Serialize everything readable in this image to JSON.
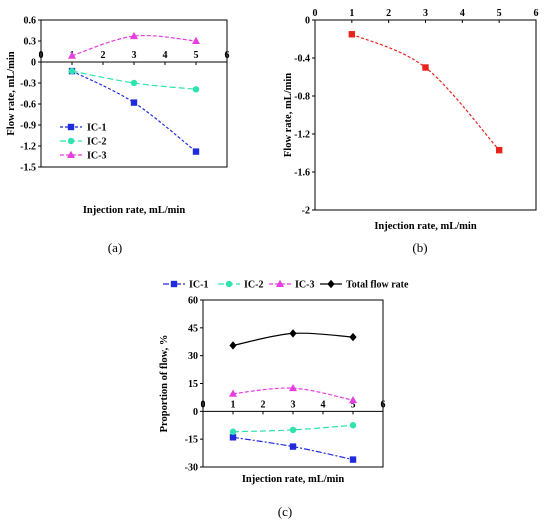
{
  "charts": [
    {
      "id": "a",
      "panel_label": "(a)",
      "type": "line",
      "xlabel": "Injection rate, mL/min",
      "ylabel": "Flow rate, mL/min",
      "xlim": [
        0,
        6
      ],
      "ylim": [
        -1.5,
        0.6
      ],
      "xticks": [
        "0",
        "1",
        "2",
        "3",
        "4",
        "5",
        "6"
      ],
      "yticks": [
        "0.6",
        "0.3",
        "0",
        "-0.3",
        "-0.6",
        "-0.9",
        "-1.2",
        "-1.5"
      ],
      "legend_position": "bottom-left",
      "series": [
        {
          "name": "IC-1",
          "color": "#1f2bdc",
          "marker": "square",
          "x": [
            1,
            3,
            5
          ],
          "y": [
            -0.13,
            -0.58,
            -1.28
          ]
        },
        {
          "name": "IC-2",
          "color": "#2de3b0",
          "marker": "circle",
          "x": [
            1,
            3,
            5
          ],
          "y": [
            -0.13,
            -0.3,
            -0.39
          ]
        },
        {
          "name": "IC-3",
          "color": "#e83ee0",
          "marker": "triangle",
          "x": [
            1,
            3,
            5
          ],
          "y": [
            0.09,
            0.37,
            0.3
          ]
        }
      ]
    },
    {
      "id": "b",
      "panel_label": "(b)",
      "type": "line",
      "xlabel": "Injection rate, mL/min",
      "ylabel": "Flow rate, mL/min",
      "xlim": [
        0,
        6
      ],
      "ylim": [
        -2,
        0
      ],
      "xticks": [
        "0",
        "1",
        "2",
        "3",
        "4",
        "5",
        "6"
      ],
      "yticks": [
        "0",
        "-0.4",
        "-0.8",
        "-1.2",
        "-1.6",
        "-2"
      ],
      "series": [
        {
          "name": "",
          "color": "#e8231c",
          "marker": "square",
          "x": [
            1,
            3,
            5
          ],
          "y": [
            -0.15,
            -0.5,
            -1.37
          ]
        }
      ]
    },
    {
      "id": "c",
      "panel_label": "(c)",
      "type": "line",
      "xlabel": "Injection rate, mL/min",
      "ylabel": "Proportion of flow, %",
      "xlim": [
        0,
        6
      ],
      "ylim": [
        -30,
        60
      ],
      "xticks": [
        "0",
        "1",
        "2",
        "3",
        "4",
        "5",
        "6"
      ],
      "yticks": [
        "60",
        "45",
        "30",
        "15",
        "0",
        "-15",
        "-30"
      ],
      "legend_position": "top",
      "series": [
        {
          "name": "IC-1",
          "color": "#1f2bdc",
          "marker": "square",
          "x": [
            1,
            3,
            5
          ],
          "y": [
            -14,
            -19,
            -26
          ]
        },
        {
          "name": "IC-2",
          "color": "#2de3b0",
          "marker": "circle",
          "x": [
            1,
            3,
            5
          ],
          "y": [
            -11,
            -10,
            -7.5
          ]
        },
        {
          "name": "IC-3",
          "color": "#e83ee0",
          "marker": "triangle",
          "x": [
            1,
            3,
            5
          ],
          "y": [
            9.5,
            12.5,
            6
          ]
        },
        {
          "name": "Total flow rate",
          "color": "#000000",
          "marker": "diamond",
          "x": [
            1,
            3,
            5
          ],
          "y": [
            35.5,
            42,
            40
          ]
        }
      ]
    }
  ]
}
